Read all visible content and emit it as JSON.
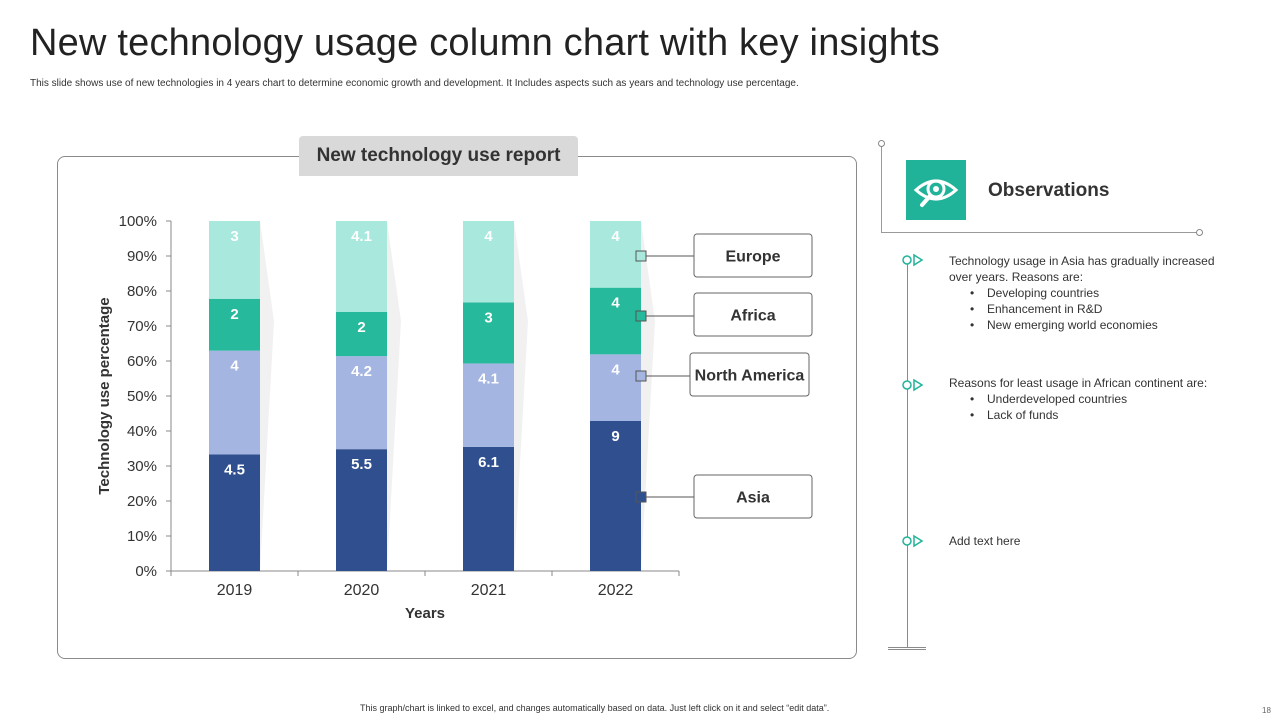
{
  "title": "New technology usage column chart with key insights",
  "subtitle": "This slide shows use of new technologies in  4 years chart to determine  economic growth and development. It Includes aspects such as years and technology use percentage.",
  "footer": "This graph/chart is linked to excel, and changes automatically based on data. Just left click on it and select “edit data”.",
  "page_number": "18",
  "colors": {
    "asia": "#2f4f8f",
    "north_america": "#a3b5e0",
    "africa": "#27b99b",
    "europe": "#a8e8dd",
    "accent": "#21b39a"
  },
  "chart_data": {
    "type": "bar",
    "stacked": true,
    "normalized_100_percent": true,
    "title": "New technology use report",
    "xlabel": "Years",
    "ylabel": "Technology use percentage",
    "categories": [
      "2019",
      "2020",
      "2021",
      "2022"
    ],
    "ylim": [
      0,
      100
    ],
    "y_ticks": [
      "0%",
      "10%",
      "20%",
      "30%",
      "40%",
      "50%",
      "60%",
      "70%",
      "80%",
      "90%",
      "100%"
    ],
    "series": [
      {
        "name": "Asia",
        "values": [
          4.5,
          5.5,
          6.1,
          9
        ],
        "labels": [
          "4.5",
          "5.5",
          "6.1",
          "9"
        ]
      },
      {
        "name": "North America",
        "values": [
          4,
          4.2,
          4.1,
          4
        ],
        "labels": [
          "4",
          "4.2",
          "4.1",
          "4"
        ]
      },
      {
        "name": "Africa",
        "values": [
          2,
          2,
          3,
          4
        ],
        "labels": [
          "2",
          "2",
          "3",
          "4"
        ]
      },
      {
        "name": "Europe",
        "values": [
          3,
          4.1,
          4,
          4
        ],
        "labels": [
          "3",
          "4.1",
          "4",
          "4"
        ]
      }
    ],
    "legend": "callouts at right of last column"
  },
  "observations": {
    "title": "Observations",
    "icon": "eye-icon",
    "items": [
      {
        "text": "Technology  usage in Asia has gradually increased over  years. Reasons are:",
        "bullets": [
          "Developing  countries",
          "Enhancement in R&D",
          "New emerging world economies"
        ]
      },
      {
        "text": "Reasons for least usage in African continent are:",
        "bullets": [
          "Underdeveloped  countries",
          "Lack of funds"
        ]
      },
      {
        "text": "Add text here",
        "bullets": []
      }
    ]
  }
}
